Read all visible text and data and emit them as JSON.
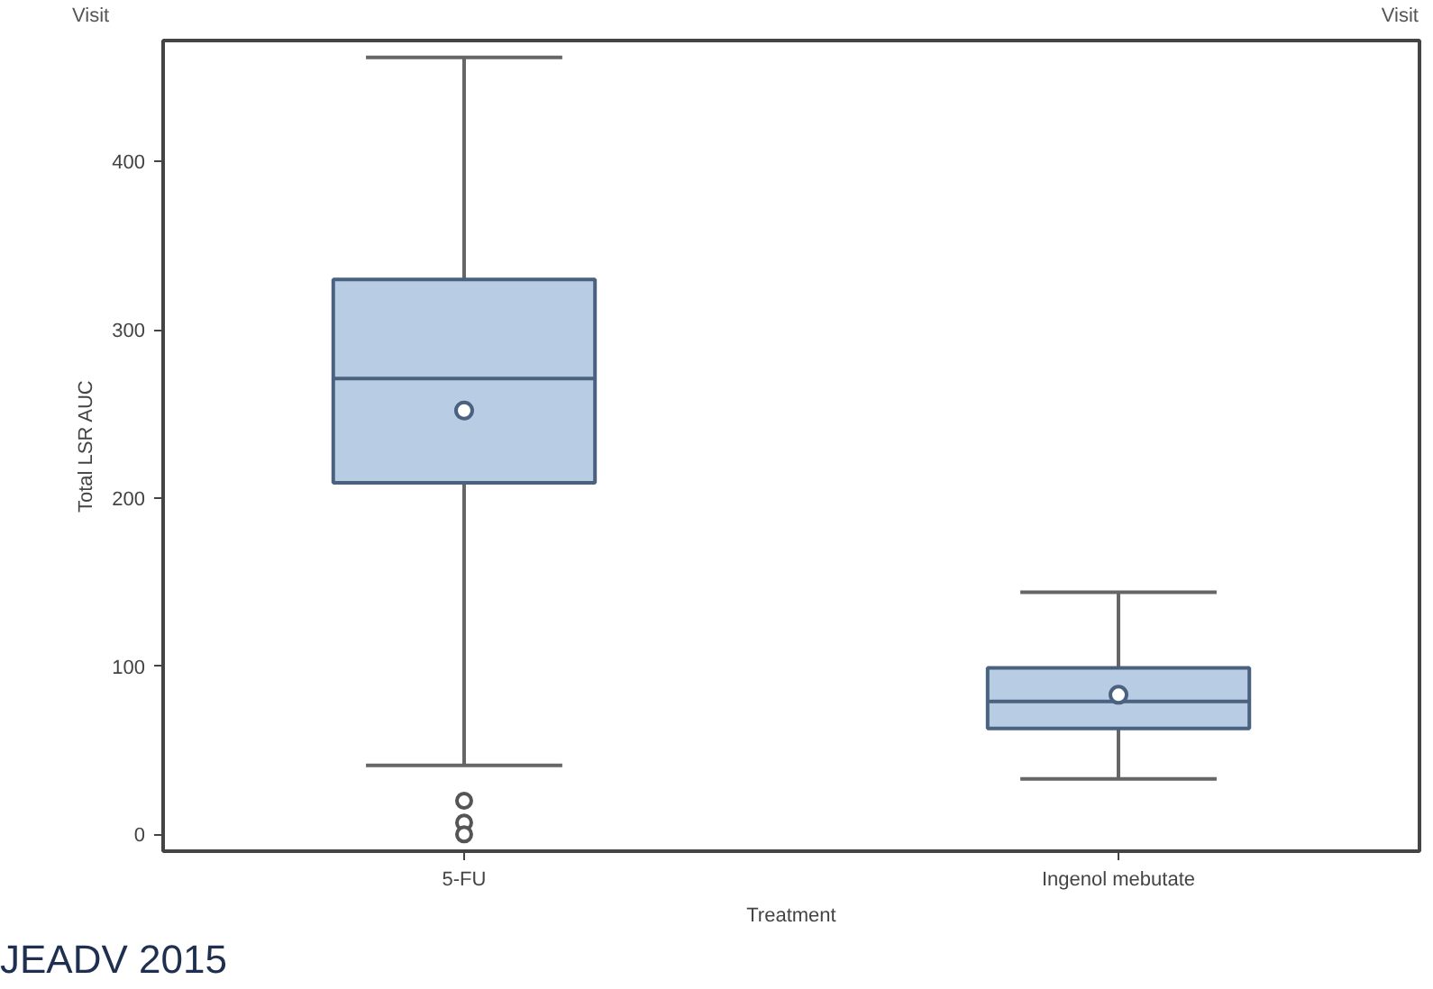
{
  "chart_data": {
    "type": "box",
    "categories": [
      "5-FU",
      "Ingenol mebutate"
    ],
    "boxes": [
      {
        "low": 41,
        "q1": 209,
        "median": 271,
        "q3": 330,
        "high": 462,
        "mean": 252,
        "outliers": [
          20,
          7,
          0
        ]
      },
      {
        "low": 33,
        "q1": 63,
        "median": 79,
        "q3": 99,
        "high": 144,
        "mean": 83
      }
    ],
    "color": "#b8cce4",
    "xlabel": "Treatment",
    "ylabel": "Total LSR AUC",
    "ylim": [
      -10,
      472
    ],
    "yticks": [
      0,
      100,
      200,
      300,
      400
    ],
    "annotations": [
      "Visit",
      "Visit",
      "JEADV 2015"
    ]
  }
}
